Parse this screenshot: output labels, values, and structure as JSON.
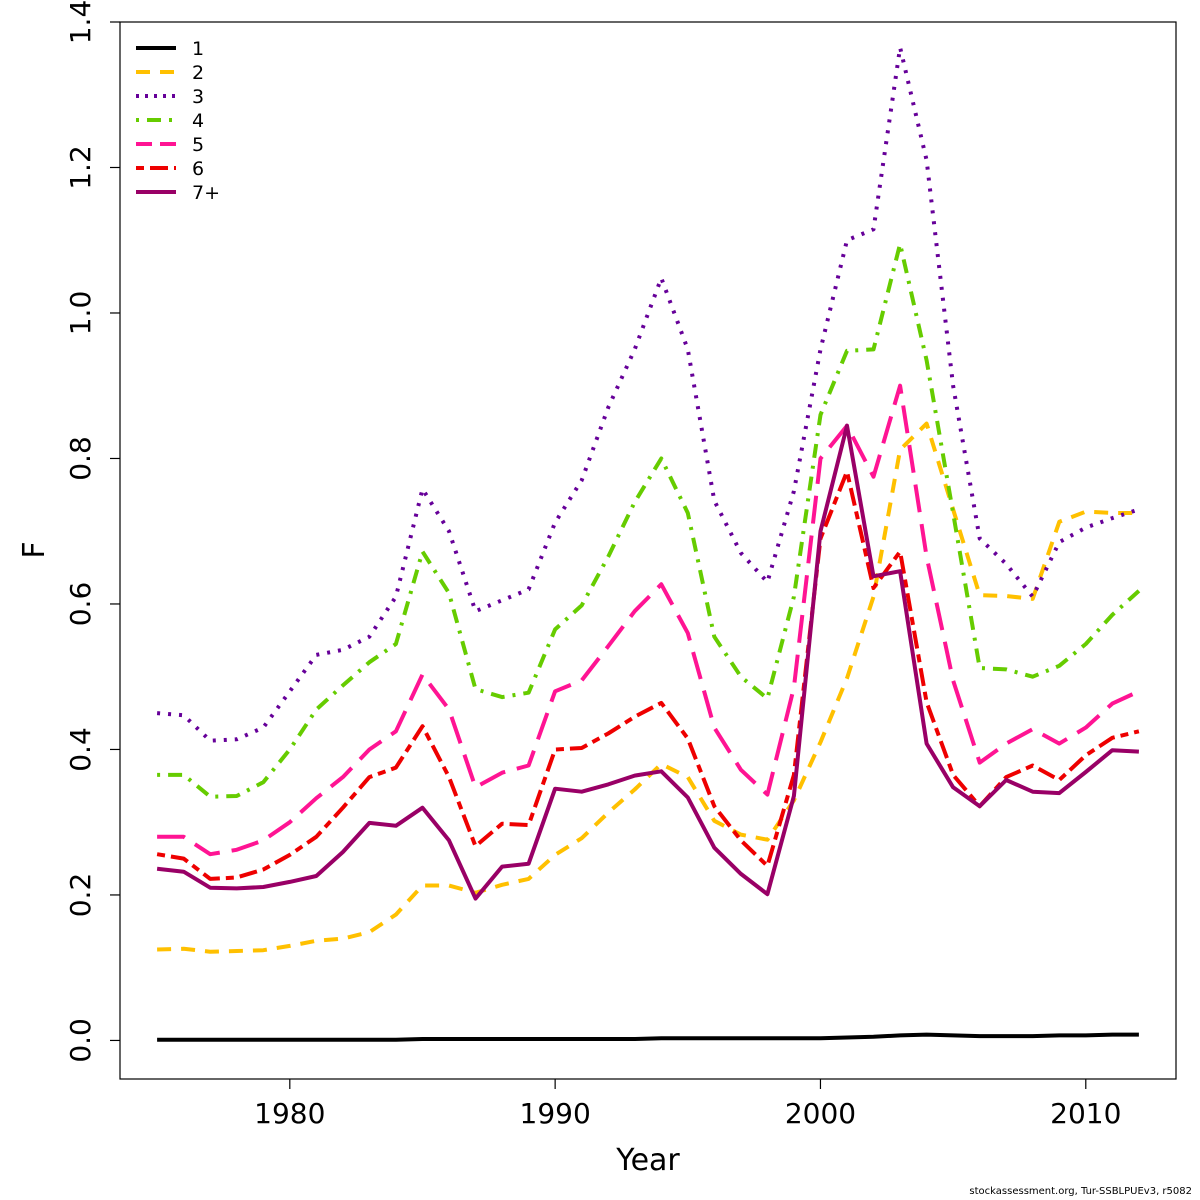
{
  "chart_data": {
    "type": "line",
    "xlabel": "Year",
    "ylabel": "F",
    "xlim": [
      1973.6,
      2013.4
    ],
    "ylim": [
      -0.053,
      1.4
    ],
    "xticks": [
      1980,
      1990,
      2000,
      2010
    ],
    "yticks": [
      0.0,
      0.2,
      0.4,
      0.6,
      0.8,
      1.0,
      1.2,
      1.4
    ],
    "ytick_labels": [
      "0.0",
      "0.2",
      "0.4",
      "0.6",
      "0.8",
      "1.0",
      "1.2",
      "1.4"
    ],
    "legend_position": "top-left",
    "x": [
      1975,
      1976,
      1977,
      1978,
      1979,
      1980,
      1981,
      1982,
      1983,
      1984,
      1985,
      1986,
      1987,
      1988,
      1989,
      1990,
      1991,
      1992,
      1993,
      1994,
      1995,
      1996,
      1997,
      1998,
      1999,
      2000,
      2001,
      2002,
      2003,
      2004,
      2005,
      2006,
      2007,
      2008,
      2009,
      2010,
      2011,
      2012
    ],
    "series": [
      {
        "name": "1",
        "color": "#000000",
        "dash": "solid",
        "values": [
          0.001,
          0.001,
          0.001,
          0.001,
          0.001,
          0.001,
          0.001,
          0.001,
          0.001,
          0.001,
          0.002,
          0.002,
          0.002,
          0.002,
          0.002,
          0.002,
          0.002,
          0.002,
          0.002,
          0.003,
          0.003,
          0.003,
          0.003,
          0.003,
          0.003,
          0.003,
          0.004,
          0.005,
          0.007,
          0.008,
          0.007,
          0.006,
          0.006,
          0.006,
          0.007,
          0.007,
          0.008,
          0.008
        ]
      },
      {
        "name": "2",
        "color": "#FFC000",
        "dash": "dashed",
        "values": [
          0.125,
          0.126,
          0.122,
          0.123,
          0.124,
          0.13,
          0.137,
          0.14,
          0.149,
          0.173,
          0.213,
          0.213,
          0.203,
          0.214,
          0.222,
          0.255,
          0.278,
          0.313,
          0.345,
          0.38,
          0.362,
          0.302,
          0.283,
          0.276,
          0.33,
          0.41,
          0.498,
          0.61,
          0.812,
          0.848,
          0.73,
          0.612,
          0.611,
          0.607,
          0.713,
          0.727,
          0.725,
          0.725
        ]
      },
      {
        "name": "3",
        "color": "#660099",
        "dash": "dotted",
        "values": [
          0.45,
          0.447,
          0.412,
          0.414,
          0.43,
          0.48,
          0.53,
          0.537,
          0.555,
          0.61,
          0.758,
          0.7,
          0.59,
          0.605,
          0.62,
          0.712,
          0.77,
          0.87,
          0.95,
          1.048,
          0.95,
          0.742,
          0.67,
          0.63,
          0.755,
          0.95,
          1.1,
          1.115,
          1.365,
          1.21,
          0.9,
          0.69,
          0.655,
          0.61,
          0.685,
          0.705,
          0.718,
          0.73
        ]
      },
      {
        "name": "4",
        "color": "#66CC00",
        "dash": "dotdash",
        "values": [
          0.365,
          0.365,
          0.335,
          0.336,
          0.355,
          0.4,
          0.455,
          0.488,
          0.52,
          0.545,
          0.672,
          0.615,
          0.483,
          0.472,
          0.478,
          0.565,
          0.598,
          0.665,
          0.74,
          0.8,
          0.725,
          0.555,
          0.5,
          0.47,
          0.61,
          0.86,
          0.948,
          0.95,
          1.095,
          0.935,
          0.725,
          0.512,
          0.51,
          0.5,
          0.515,
          0.545,
          0.585,
          0.618
        ]
      },
      {
        "name": "5",
        "color": "#FF1493",
        "dash": "longdash",
        "values": [
          0.28,
          0.28,
          0.256,
          0.262,
          0.275,
          0.3,
          0.333,
          0.362,
          0.4,
          0.425,
          0.503,
          0.455,
          0.348,
          0.368,
          0.378,
          0.48,
          0.495,
          0.542,
          0.59,
          0.627,
          0.56,
          0.43,
          0.372,
          0.338,
          0.485,
          0.8,
          0.845,
          0.775,
          0.9,
          0.665,
          0.495,
          0.382,
          0.408,
          0.428,
          0.408,
          0.43,
          0.463,
          0.48
        ]
      },
      {
        "name": "6",
        "color": "#EE0000",
        "dash": "twodash",
        "values": [
          0.256,
          0.25,
          0.222,
          0.224,
          0.235,
          0.255,
          0.28,
          0.32,
          0.362,
          0.375,
          0.432,
          0.362,
          0.267,
          0.298,
          0.296,
          0.4,
          0.402,
          0.422,
          0.445,
          0.464,
          0.415,
          0.322,
          0.275,
          0.24,
          0.365,
          0.69,
          0.782,
          0.622,
          0.672,
          0.465,
          0.365,
          0.322,
          0.362,
          0.378,
          0.358,
          0.392,
          0.416,
          0.425
        ]
      },
      {
        "name": "7+",
        "color": "#990066",
        "dash": "solid",
        "values": [
          0.236,
          0.232,
          0.21,
          0.209,
          0.211,
          0.218,
          0.226,
          0.259,
          0.299,
          0.295,
          0.32,
          0.275,
          0.195,
          0.239,
          0.243,
          0.346,
          0.342,
          0.352,
          0.364,
          0.37,
          0.334,
          0.265,
          0.229,
          0.201,
          0.336,
          0.7,
          0.845,
          0.638,
          0.645,
          0.408,
          0.348,
          0.322,
          0.358,
          0.342,
          0.34,
          0.369,
          0.399,
          0.397
        ]
      }
    ]
  },
  "footer": "stockassessment.org, Tur-SSBLPUEv3, r5082"
}
